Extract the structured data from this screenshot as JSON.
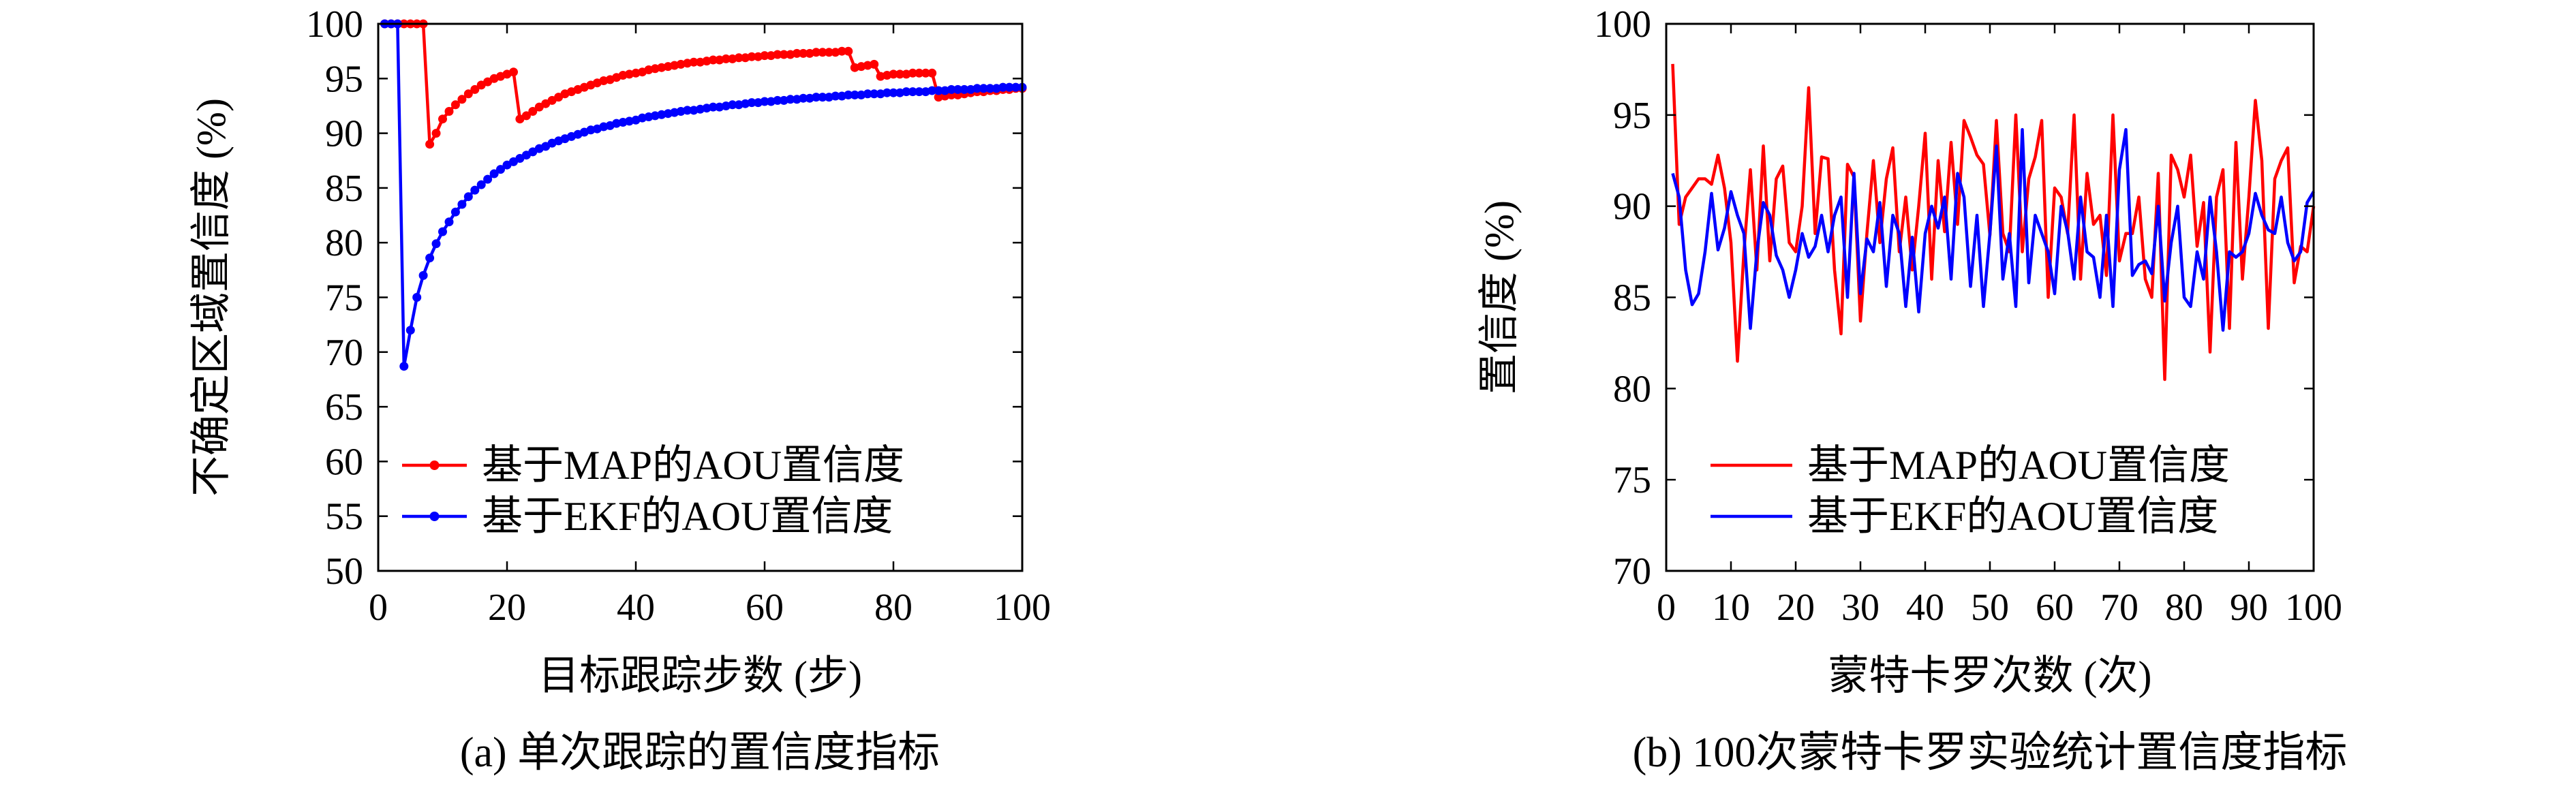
{
  "chart_data": [
    {
      "type": "line",
      "caption": "(a) 单次跟踪的置信度指标",
      "xlabel": "目标跟踪步数 (步)",
      "ylabel": "不确定区域置信度 (%)",
      "xlim": [
        0,
        100
      ],
      "ylim": [
        50,
        100
      ],
      "xticks": [
        "0",
        "20",
        "40",
        "60",
        "80",
        "100"
      ],
      "yticks": [
        "50",
        "55",
        "60",
        "65",
        "70",
        "75",
        "80",
        "85",
        "90",
        "95",
        "100"
      ],
      "legend_position": "lower-left",
      "series": [
        {
          "name": "基于MAP的AOU置信度",
          "color": "#ff0000",
          "marker": "circle",
          "x": [
            1,
            2,
            3,
            4,
            5,
            6,
            7,
            8,
            9,
            10,
            11,
            12,
            13,
            14,
            15,
            16,
            17,
            18,
            19,
            20,
            21,
            22,
            23,
            24,
            25,
            26,
            27,
            28,
            29,
            30,
            31,
            32,
            33,
            34,
            35,
            36,
            37,
            38,
            39,
            40,
            41,
            42,
            43,
            44,
            45,
            46,
            47,
            48,
            49,
            50,
            51,
            52,
            53,
            54,
            55,
            56,
            57,
            58,
            59,
            60,
            61,
            62,
            63,
            64,
            65,
            66,
            67,
            68,
            69,
            70,
            71,
            72,
            73,
            74,
            75,
            76,
            77,
            78,
            79,
            80,
            81,
            82,
            83,
            84,
            85,
            86,
            87,
            88,
            89,
            90,
            91,
            92,
            93,
            94,
            95,
            96,
            97,
            98,
            99,
            100
          ],
          "y": [
            100,
            100,
            100,
            100,
            100,
            100,
            100,
            89,
            90,
            91.3,
            92,
            92.6,
            93.1,
            93.6,
            94,
            94.4,
            94.7,
            95,
            95.2,
            95.4,
            95.6,
            91.3,
            91.6,
            92,
            92.4,
            92.7,
            93,
            93.3,
            93.6,
            93.8,
            94,
            94.2,
            94.4,
            94.6,
            94.8,
            94.9,
            95.1,
            95.3,
            95.4,
            95.5,
            95.6,
            95.8,
            95.9,
            96,
            96.1,
            96.2,
            96.3,
            96.4,
            96.5,
            96.5,
            96.6,
            96.7,
            96.7,
            96.8,
            96.8,
            96.9,
            96.9,
            97,
            97,
            97.1,
            97.1,
            97.2,
            97.2,
            97.2,
            97.3,
            97.3,
            97.3,
            97.4,
            97.4,
            97.4,
            97.4,
            97.5,
            97.5,
            96,
            96.1,
            96.2,
            96.3,
            95.2,
            95.3,
            95.4,
            95.4,
            95.4,
            95.5,
            95.5,
            95.5,
            95.5,
            93.3,
            93.4,
            93.5,
            93.5,
            93.6,
            93.7,
            93.8,
            93.8,
            93.9,
            93.9,
            94,
            94,
            94.1,
            94.1
          ]
        },
        {
          "name": "基于EKF的AOU置信度",
          "color": "#0000ff",
          "marker": "circle",
          "x": [
            1,
            2,
            3,
            4,
            5,
            6,
            7,
            8,
            9,
            10,
            11,
            12,
            13,
            14,
            15,
            16,
            17,
            18,
            19,
            20,
            21,
            22,
            23,
            24,
            25,
            26,
            27,
            28,
            29,
            30,
            31,
            32,
            33,
            34,
            35,
            36,
            37,
            38,
            39,
            40,
            41,
            42,
            43,
            44,
            45,
            46,
            47,
            48,
            49,
            50,
            51,
            52,
            53,
            54,
            55,
            56,
            57,
            58,
            59,
            60,
            61,
            62,
            63,
            64,
            65,
            66,
            67,
            68,
            69,
            70,
            71,
            72,
            73,
            74,
            75,
            76,
            77,
            78,
            79,
            80,
            81,
            82,
            83,
            84,
            85,
            86,
            87,
            88,
            89,
            90,
            91,
            92,
            93,
            94,
            95,
            96,
            97,
            98,
            99,
            100
          ],
          "y": [
            100,
            100,
            100,
            68.7,
            72,
            75,
            77,
            78.6,
            79.9,
            81,
            81.9,
            82.8,
            83.5,
            84.2,
            84.8,
            85.3,
            85.8,
            86.3,
            86.7,
            87.1,
            87.4,
            87.7,
            88,
            88.3,
            88.6,
            88.8,
            89.1,
            89.3,
            89.5,
            89.7,
            89.9,
            90.1,
            90.3,
            90.4,
            90.6,
            90.7,
            90.9,
            91,
            91.1,
            91.2,
            91.4,
            91.5,
            91.6,
            91.7,
            91.8,
            91.9,
            92,
            92.1,
            92.1,
            92.2,
            92.3,
            92.4,
            92.4,
            92.5,
            92.6,
            92.6,
            92.7,
            92.8,
            92.8,
            92.9,
            92.9,
            93,
            93,
            93.1,
            93.1,
            93.2,
            93.2,
            93.3,
            93.3,
            93.3,
            93.4,
            93.4,
            93.5,
            93.5,
            93.5,
            93.6,
            93.6,
            93.6,
            93.7,
            93.7,
            93.7,
            93.8,
            93.8,
            93.8,
            93.8,
            93.9,
            93.9,
            93.9,
            94,
            94,
            94,
            94,
            94.1,
            94.1,
            94.1,
            94.1,
            94.2,
            94.2,
            94.2,
            94.2
          ]
        }
      ]
    },
    {
      "type": "line",
      "caption": "(b) 100次蒙特卡罗实验统计置信度指标",
      "xlabel": "蒙特卡罗次数 (次)",
      "ylabel": "置信度 (%)",
      "xlim": [
        0,
        100
      ],
      "ylim": [
        70,
        100
      ],
      "xticks": [
        "0",
        "10",
        "20",
        "30",
        "40",
        "50",
        "60",
        "70",
        "80",
        "90",
        "100"
      ],
      "yticks": [
        "70",
        "75",
        "80",
        "85",
        "90",
        "95",
        "100"
      ],
      "legend_position": "lower-left",
      "series": [
        {
          "name": "基于MAP的AOU置信度",
          "color": "#ff0000",
          "x": [
            1,
            2,
            3,
            4,
            5,
            6,
            7,
            8,
            9,
            10,
            11,
            12,
            13,
            14,
            15,
            16,
            17,
            18,
            19,
            20,
            21,
            22,
            23,
            24,
            25,
            26,
            27,
            28,
            29,
            30,
            31,
            32,
            33,
            34,
            35,
            36,
            37,
            38,
            39,
            40,
            41,
            42,
            43,
            44,
            45,
            46,
            47,
            48,
            49,
            50,
            51,
            52,
            53,
            54,
            55,
            56,
            57,
            58,
            59,
            60,
            61,
            62,
            63,
            64,
            65,
            66,
            67,
            68,
            69,
            70,
            71,
            72,
            73,
            74,
            75,
            76,
            77,
            78,
            79,
            80,
            81,
            82,
            83,
            84,
            85,
            86,
            87,
            88,
            89,
            90,
            91,
            92,
            93,
            94,
            95,
            96,
            97,
            98,
            99,
            100
          ],
          "y": [
            97.8,
            89,
            90.5,
            91,
            91.5,
            91.5,
            91.2,
            92.8,
            91,
            88,
            81.5,
            87.5,
            92,
            86.5,
            93.3,
            87,
            91.5,
            92.2,
            88,
            87.5,
            90,
            96.5,
            88.5,
            92.7,
            92.6,
            86.5,
            83,
            92.3,
            91.6,
            83.7,
            88.5,
            92.5,
            88,
            91.5,
            93.2,
            87.5,
            90.5,
            86.5,
            90,
            94,
            86,
            92.5,
            88.6,
            93.5,
            89,
            94.7,
            93.8,
            92.8,
            92.3,
            88.4,
            94.7,
            88.5,
            87.5,
            95,
            87.5,
            91.5,
            92.7,
            94.7,
            85,
            91,
            90.5,
            88.5,
            95,
            86,
            91.8,
            89,
            89.5,
            86.2,
            95,
            87,
            88.5,
            88.5,
            90.5,
            86,
            85,
            91.8,
            80.5,
            92.8,
            92,
            90.5,
            92.8,
            87.8,
            90.2,
            82,
            90.5,
            92,
            83.3,
            93.5,
            86,
            90.5,
            95.8,
            92.5,
            83.3,
            91.5,
            92.5,
            93.2,
            85.8,
            87.8,
            87.5,
            90
          ]
        },
        {
          "name": "基于EKF的AOU置信度",
          "color": "#0000ff",
          "x": [
            1,
            2,
            3,
            4,
            5,
            6,
            7,
            8,
            9,
            10,
            11,
            12,
            13,
            14,
            15,
            16,
            17,
            18,
            19,
            20,
            21,
            22,
            23,
            24,
            25,
            26,
            27,
            28,
            29,
            30,
            31,
            32,
            33,
            34,
            35,
            36,
            37,
            38,
            39,
            40,
            41,
            42,
            43,
            44,
            45,
            46,
            47,
            48,
            49,
            50,
            51,
            52,
            53,
            54,
            55,
            56,
            57,
            58,
            59,
            60,
            61,
            62,
            63,
            64,
            65,
            66,
            67,
            68,
            69,
            70,
            71,
            72,
            73,
            74,
            75,
            76,
            77,
            78,
            79,
            80,
            81,
            82,
            83,
            84,
            85,
            86,
            87,
            88,
            89,
            90,
            91,
            92,
            93,
            94,
            95,
            96,
            97,
            98,
            99,
            100
          ],
          "y": [
            91.8,
            90.5,
            86.5,
            84.6,
            85.2,
            87.5,
            90.7,
            87.6,
            88.8,
            90.8,
            89.5,
            88.5,
            83.3,
            87.5,
            90.2,
            89.5,
            87.3,
            86.5,
            85,
            86.5,
            88.5,
            87.2,
            87.8,
            89.5,
            87.5,
            89.5,
            90.5,
            85,
            91.8,
            85.2,
            88.2,
            87.5,
            90.2,
            85.6,
            89.5,
            88.5,
            84.5,
            88.3,
            84.2,
            88.5,
            90,
            88.8,
            90.5,
            86,
            91.8,
            90.5,
            85.6,
            89.5,
            84.5,
            88.5,
            93.3,
            86,
            88.5,
            84.5,
            94.2,
            85.8,
            89.5,
            88.5,
            87.5,
            85.2,
            90,
            88.6,
            86,
            90.5,
            87.5,
            87.2,
            85,
            89.5,
            84.5,
            92,
            94.2,
            86.2,
            86.8,
            87,
            86.3,
            90,
            84.8,
            88,
            90,
            85,
            84.5,
            87.5,
            86,
            90.5,
            87.5,
            83.2,
            87.5,
            87.2,
            87.5,
            88.5,
            90.7,
            89.5,
            88.7,
            88.5,
            90.5,
            88,
            87,
            87.5,
            90.2,
            90.8
          ]
        }
      ]
    }
  ]
}
